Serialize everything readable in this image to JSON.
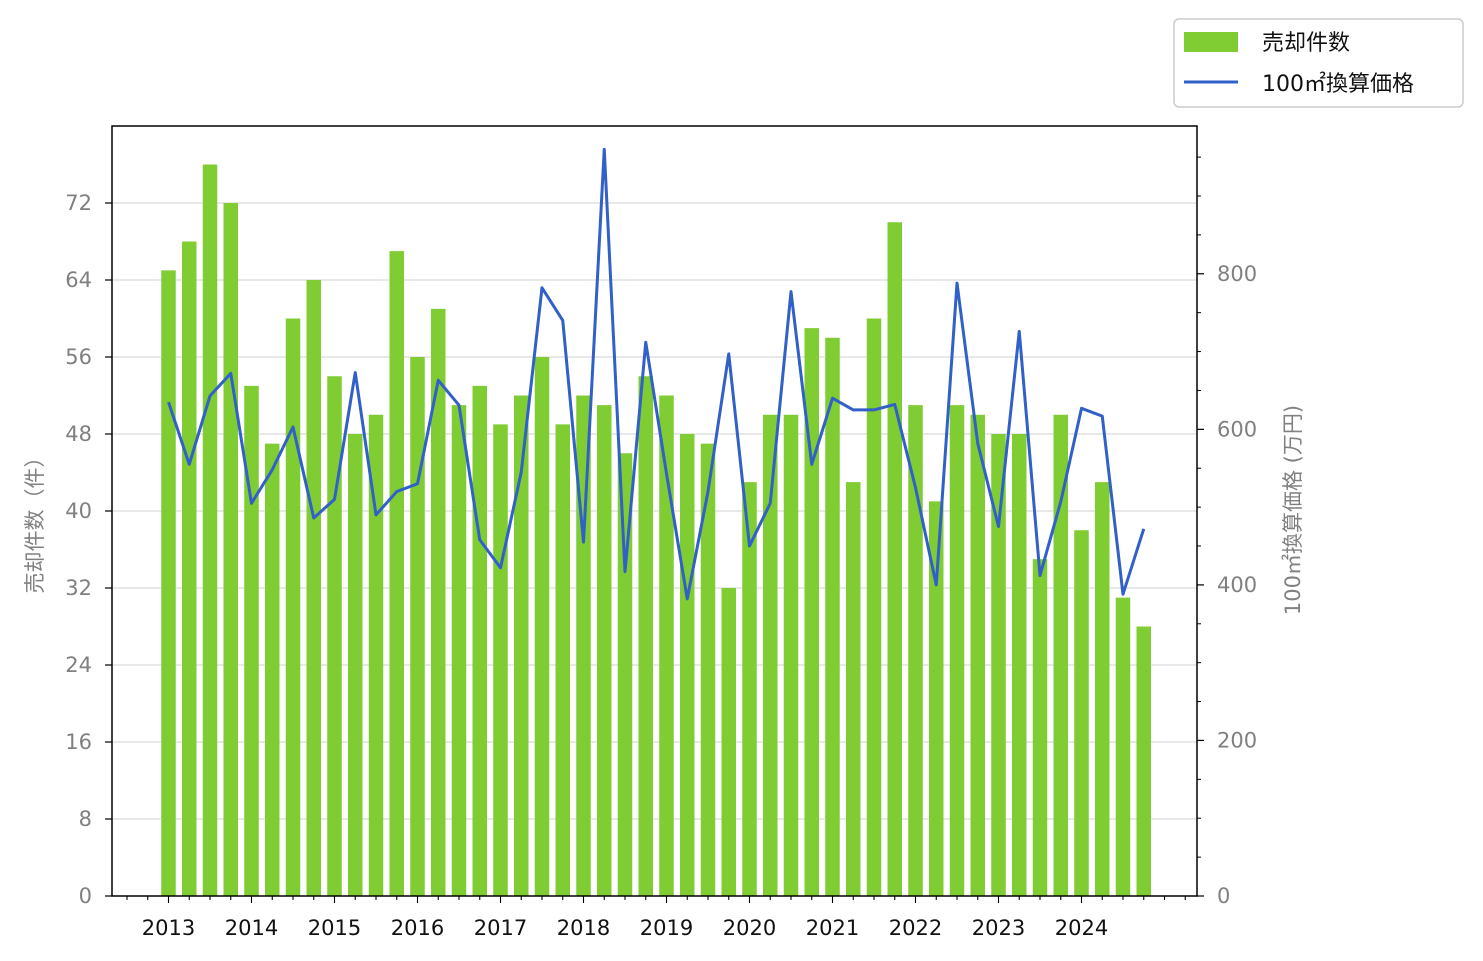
{
  "chart_data": {
    "type": "bar+line",
    "title": "",
    "x_ticks": [
      "2013",
      "2014",
      "2015",
      "2016",
      "2017",
      "2018",
      "2019",
      "2020",
      "2021",
      "2022",
      "2023",
      "2024"
    ],
    "quarters_per_year": 4,
    "left_axis": {
      "label": "売却件数（件）",
      "ylim": [
        0,
        80
      ],
      "ticks": [
        0,
        8,
        16,
        24,
        32,
        40,
        48,
        56,
        64,
        72
      ]
    },
    "right_axis": {
      "label": "100㎡換算価格 (万円)",
      "ylim": [
        0,
        990
      ],
      "ticks": [
        0,
        200,
        400,
        600,
        800
      ]
    },
    "grid": "horizontal, left axis",
    "legend_position": "top-right outside plot",
    "series": [
      {
        "name": "売却件数",
        "kind": "bar",
        "axis": "left",
        "color": "#80cc33",
        "values": [
          65,
          68,
          76,
          72,
          53,
          47,
          60,
          64,
          54,
          48,
          50,
          67,
          56,
          61,
          51,
          53,
          49,
          52,
          56,
          49,
          52,
          51,
          46,
          54,
          52,
          48,
          47,
          32,
          43,
          50,
          50,
          59,
          58,
          43,
          60,
          70,
          51,
          41,
          51,
          50,
          48,
          48,
          35,
          50,
          38,
          43,
          31,
          28
        ]
      },
      {
        "name": "100㎡換算価格",
        "kind": "line",
        "axis": "right",
        "color": "#3060c8",
        "values": [
          635,
          555,
          643,
          672,
          505,
          548,
          603,
          486,
          510,
          673,
          490,
          520,
          530,
          663,
          631,
          458,
          422,
          545,
          782,
          740,
          455,
          960,
          417,
          712,
          543,
          382,
          520,
          697,
          450,
          505,
          777,
          555,
          640,
          625,
          625,
          632,
          525,
          400,
          788,
          582,
          475,
          726,
          412,
          507,
          627,
          617,
          388,
          472
        ]
      }
    ]
  }
}
